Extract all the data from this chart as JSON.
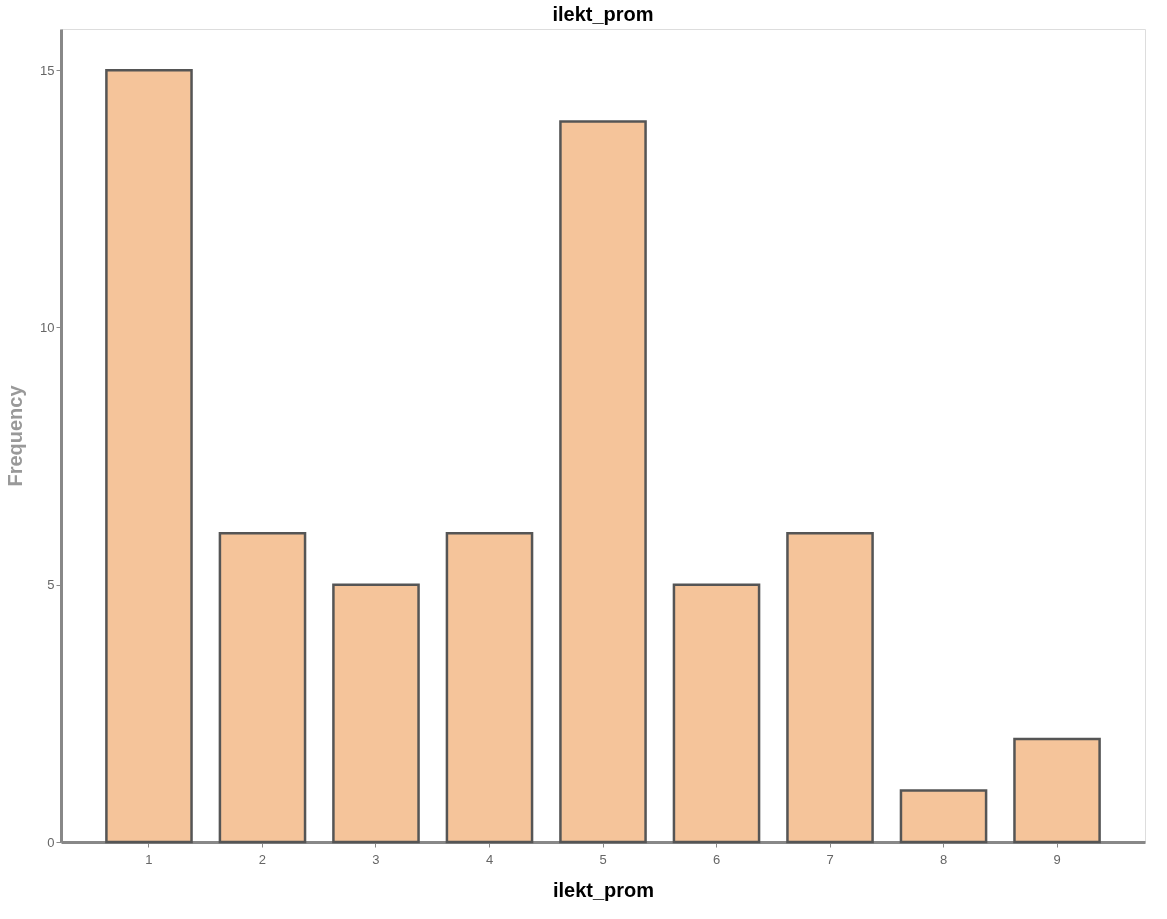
{
  "chart_data": {
    "type": "bar",
    "title": "ilekt_prom",
    "xlabel": "ilekt_prom",
    "ylabel": "Frequency",
    "categories": [
      "1",
      "2",
      "3",
      "4",
      "5",
      "6",
      "7",
      "8",
      "9"
    ],
    "values": [
      15,
      6,
      5,
      6,
      14,
      5,
      6,
      1,
      2
    ],
    "color": "#f5c49a",
    "ylim": [
      0,
      15.8
    ],
    "yticks": [
      0,
      5,
      10,
      15
    ],
    "grid": false
  }
}
